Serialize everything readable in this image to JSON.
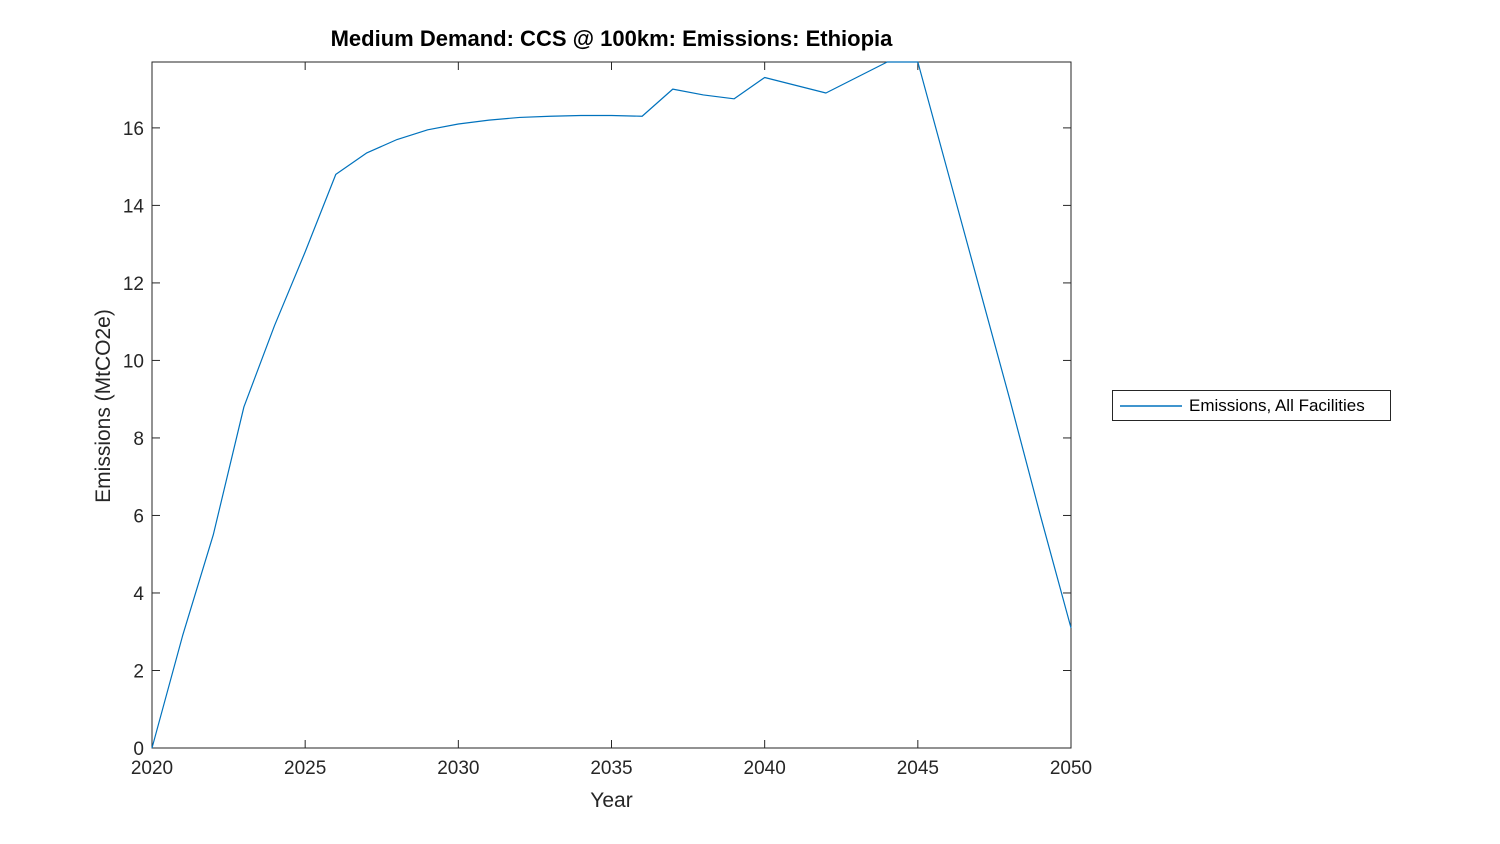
{
  "figure": {
    "background_color": "#ffffff",
    "axis_color": "#262626",
    "title": "Medium Demand: CCS @ 100km: Emissions: Ethiopia"
  },
  "legend": {
    "label": "Emissions, All Facilities",
    "position": "right-outside",
    "line_color": "#0072BD"
  },
  "chart_data": {
    "type": "line",
    "title": "Medium Demand: CCS @ 100km: Emissions: Ethiopia",
    "xlabel": "Year",
    "ylabel": "Emissions (MtCO2e)",
    "xlim": [
      2020,
      2050
    ],
    "ylim": [
      0,
      17.7
    ],
    "xticks": [
      2020,
      2025,
      2030,
      2035,
      2040,
      2045,
      2050
    ],
    "yticks": [
      0,
      2,
      4,
      6,
      8,
      10,
      12,
      14,
      16
    ],
    "grid": false,
    "box": true,
    "legend_entries": [
      "Emissions, All Facilities"
    ],
    "series": [
      {
        "name": "Emissions, All Facilities",
        "color": "#0072BD",
        "x": [
          2020,
          2021,
          2022,
          2023,
          2024,
          2025,
          2026,
          2027,
          2028,
          2029,
          2030,
          2031,
          2032,
          2033,
          2034,
          2035,
          2036,
          2037,
          2038,
          2039,
          2040,
          2041,
          2042,
          2043,
          2044,
          2045,
          2046,
          2047,
          2048,
          2049,
          2050
        ],
        "y": [
          0,
          2.9,
          5.5,
          8.8,
          10.9,
          12.8,
          14.8,
          15.35,
          15.7,
          15.95,
          16.1,
          16.2,
          16.27,
          16.3,
          16.32,
          16.32,
          16.3,
          17.0,
          16.85,
          16.75,
          17.3,
          17.1,
          16.9,
          17.3,
          17.7,
          17.7,
          14.8,
          11.9,
          9.0,
          6.0,
          3.1
        ]
      }
    ]
  }
}
